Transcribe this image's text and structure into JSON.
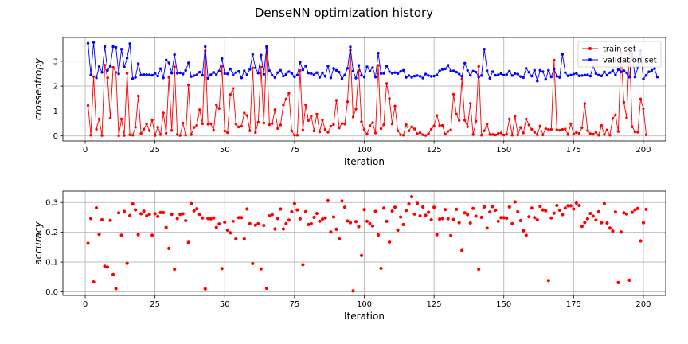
{
  "figure": {
    "title": "DenseNN optimization history"
  },
  "chart_data": [
    {
      "type": "line",
      "xlabel": "Iteration",
      "ylabel": "crossentropy",
      "xlim": [
        -8,
        208
      ],
      "ylim": [
        -0.2,
        3.95
      ],
      "xticks": [
        0,
        25,
        50,
        75,
        100,
        125,
        150,
        175,
        200
      ],
      "yticks": [
        0,
        1,
        2,
        3
      ],
      "grid": true,
      "legend_position": "top-right",
      "series": [
        {
          "name": "train set",
          "color": "#ff0000",
          "values": [
            1.22,
            0.03,
            2.38,
            0.27,
            0.68,
            0.02,
            2.84,
            2.33,
            0.72,
            2.75,
            2.55,
            0.01,
            0.68,
            0.02,
            2.51,
            0.05,
            0.03,
            0.35,
            1.6,
            0.1,
            0.27,
            0.48,
            0.21,
            0.64,
            0.02,
            0.35,
            0.06,
            0.92,
            0.11,
            2.35,
            0.22,
            2.77,
            0.06,
            0.02,
            0.52,
            0.03,
            2.04,
            0.06,
            0.34,
            0.43,
            1.05,
            0.49,
            3.41,
            0.47,
            0.49,
            0.23,
            1.25,
            1.1,
            2.8,
            0.2,
            0.13,
            1.66,
            1.91,
            0.48,
            0.36,
            0.39,
            0.92,
            0.82,
            0.21,
            2.73,
            0.14,
            0.55,
            2.76,
            0.52,
            3.52,
            0.45,
            0.5,
            1.05,
            0.3,
            0.44,
            1.24,
            1.48,
            1.71,
            0.2,
            0.03,
            0.03,
            2.62,
            0.24,
            1.24,
            0.62,
            0.8,
            0.2,
            0.87,
            0.16,
            0.64,
            0.26,
            0.15,
            0.39,
            0.46,
            1.43,
            0.32,
            0.5,
            0.48,
            1.37,
            3.44,
            0.76,
            1.08,
            2.62,
            0.57,
            0.26,
            0.07,
            0.41,
            0.53,
            0.12,
            2.83,
            0.29,
            0.45,
            2.1,
            1.5,
            0.48,
            1.2,
            0.21,
            0.05,
            0.03,
            0.45,
            0.21,
            0.37,
            0.28,
            0.09,
            0.13,
            0.05,
            0.02,
            0.09,
            0.27,
            0.4,
            0.82,
            0.42,
            0.42,
            0.07,
            0.19,
            0.24,
            1.67,
            0.87,
            0.62,
            2.28,
            0.63,
            0.37,
            1.3,
            0.06,
            0.59,
            2.79,
            0.03,
            0.21,
            0.47,
            0.06,
            0.06,
            0.04,
            0.1,
            0.12,
            0.04,
            0.07,
            0.68,
            0.03,
            0.79,
            0.05,
            0.34,
            0.12,
            0.68,
            0.44,
            0.27,
            0.15,
            0.05,
            0.4,
            0.05,
            0.29,
            0.26,
            0.26,
            3.04,
            0.25,
            0.23,
            0.26,
            0.28,
            0.06,
            0.49,
            0.08,
            0.14,
            0.1,
            0.33,
            1.3,
            0.22,
            0.09,
            0.07,
            0.15,
            0.03,
            0.42,
            0.06,
            0.24,
            0.03,
            0.7,
            0.84,
            0.18,
            3.33,
            1.35,
            0.73,
            3.5,
            0.37,
            0.16,
            0.15,
            1.48,
            1.1,
            0.05
          ]
        },
        {
          "name": "validation set",
          "color": "#0000ff",
          "values": [
            3.72,
            2.45,
            3.75,
            2.33,
            2.78,
            2.55,
            3.58,
            2.63,
            2.8,
            3.58,
            3.55,
            2.49,
            3.48,
            2.76,
            3.12,
            3.7,
            2.3,
            2.35,
            2.9,
            2.44,
            2.46,
            2.46,
            2.45,
            2.43,
            2.51,
            2.4,
            2.7,
            2.33,
            3.05,
            2.93,
            2.52,
            3.26,
            2.51,
            2.53,
            2.48,
            2.63,
            2.93,
            2.38,
            2.42,
            2.45,
            2.56,
            2.43,
            3.58,
            2.31,
            2.45,
            2.55,
            2.46,
            2.6,
            3.1,
            2.5,
            2.49,
            2.69,
            2.45,
            2.54,
            2.59,
            2.33,
            2.61,
            2.45,
            2.67,
            3.27,
            2.73,
            2.52,
            3.24,
            2.47,
            3.59,
            2.62,
            2.43,
            2.34,
            2.54,
            2.63,
            2.4,
            2.47,
            2.58,
            2.51,
            2.37,
            2.44,
            2.96,
            2.65,
            2.81,
            2.52,
            2.5,
            2.45,
            2.54,
            2.35,
            2.53,
            2.39,
            2.8,
            2.33,
            2.71,
            2.63,
            2.56,
            2.29,
            2.44,
            2.71,
            3.57,
            2.6,
            2.32,
            2.83,
            2.43,
            2.36,
            2.77,
            2.6,
            2.74,
            2.36,
            3.32,
            2.5,
            2.51,
            2.8,
            2.58,
            2.51,
            2.54,
            2.5,
            2.59,
            2.63,
            2.35,
            2.42,
            2.35,
            2.4,
            2.42,
            2.39,
            2.32,
            2.48,
            2.42,
            2.39,
            2.4,
            2.44,
            2.61,
            2.67,
            2.69,
            2.84,
            2.61,
            2.61,
            2.56,
            2.48,
            2.39,
            2.92,
            2.63,
            2.43,
            2.6,
            2.56,
            2.36,
            2.42,
            3.48,
            2.62,
            2.31,
            2.58,
            2.43,
            2.45,
            2.5,
            2.44,
            2.46,
            2.6,
            2.42,
            2.5,
            2.48,
            2.38,
            2.34,
            2.71,
            2.55,
            2.4,
            2.63,
            2.2,
            2.63,
            2.58,
            2.27,
            2.63,
            2.37,
            2.69,
            2.39,
            2.35,
            3.27,
            2.54,
            2.41,
            2.44,
            2.48,
            2.51,
            2.41,
            2.42,
            2.44,
            2.45,
            2.4,
            2.81,
            2.5,
            2.44,
            2.41,
            2.57,
            2.43,
            2.54,
            2.62,
            2.44,
            2.66,
            2.57,
            2.62,
            2.53,
            2.36,
            3.31,
            2.36,
            2.74,
            3.42,
            2.28,
            2.43,
            2.57,
            2.63,
            2.7,
            2.36
          ]
        }
      ]
    },
    {
      "type": "scatter",
      "xlabel": "Iteration",
      "ylabel": "accuracy",
      "xlim": [
        -8,
        208
      ],
      "ylim": [
        -0.012,
        0.338
      ],
      "xticks": [
        0,
        25,
        50,
        75,
        100,
        125,
        150,
        175,
        200
      ],
      "yticks": [
        0.0,
        0.1,
        0.2,
        0.3
      ],
      "grid": true,
      "series": [
        {
          "color": "#ff0000",
          "values": [
            0.163,
            0.246,
            0.033,
            0.282,
            0.193,
            0.242,
            0.086,
            0.083,
            0.24,
            0.058,
            0.011,
            0.265,
            0.19,
            0.27,
            0.096,
            0.256,
            0.295,
            0.275,
            0.192,
            0.262,
            0.271,
            0.255,
            0.26,
            0.19,
            0.262,
            0.253,
            0.266,
            0.266,
            0.216,
            0.146,
            0.26,
            0.076,
            0.246,
            0.26,
            0.262,
            0.239,
            0.166,
            0.296,
            0.272,
            0.279,
            0.26,
            0.248,
            0.01,
            0.246,
            0.245,
            0.248,
            0.216,
            0.228,
            0.078,
            0.234,
            0.207,
            0.198,
            0.237,
            0.178,
            0.249,
            0.249,
            0.178,
            0.278,
            0.229,
            0.095,
            0.224,
            0.229,
            0.077,
            0.223,
            0.012,
            0.255,
            0.259,
            0.211,
            0.246,
            0.278,
            0.211,
            0.229,
            0.241,
            0.269,
            0.296,
            0.275,
            0.245,
            0.091,
            0.269,
            0.226,
            0.229,
            0.25,
            0.263,
            0.237,
            0.244,
            0.248,
            0.306,
            0.201,
            0.251,
            0.21,
            0.178,
            0.305,
            0.284,
            0.238,
            0.232,
            0.003,
            0.236,
            0.219,
            0.122,
            0.276,
            0.237,
            0.229,
            0.221,
            0.27,
            0.191,
            0.079,
            0.281,
            0.237,
            0.167,
            0.271,
            0.284,
            0.207,
            0.251,
            0.226,
            0.273,
            0.295,
            0.319,
            0.261,
            0.297,
            0.255,
            0.285,
            0.257,
            0.267,
            0.242,
            0.284,
            0.192,
            0.244,
            0.246,
            0.276,
            0.245,
            0.189,
            0.243,
            0.277,
            0.232,
            0.139,
            0.265,
            0.259,
            0.231,
            0.28,
            0.254,
            0.076,
            0.25,
            0.285,
            0.214,
            0.268,
            0.286,
            0.274,
            0.237,
            0.249,
            0.249,
            0.247,
            0.285,
            0.229,
            0.302,
            0.269,
            0.239,
            0.205,
            0.19,
            0.252,
            0.281,
            0.249,
            0.242,
            0.287,
            0.275,
            0.272,
            0.038,
            0.248,
            0.264,
            0.29,
            0.274,
            0.259,
            0.281,
            0.289,
            0.289,
            0.278,
            0.298,
            0.29,
            0.22,
            0.233,
            0.245,
            0.263,
            0.254,
            0.241,
            0.269,
            0.232,
            0.296,
            0.231,
            0.214,
            0.204,
            0.268,
            0.031,
            0.201,
            0.265,
            0.261,
            0.039,
            0.267,
            0.275,
            0.28,
            0.171,
            0.232,
            0.277
          ]
        }
      ]
    }
  ]
}
